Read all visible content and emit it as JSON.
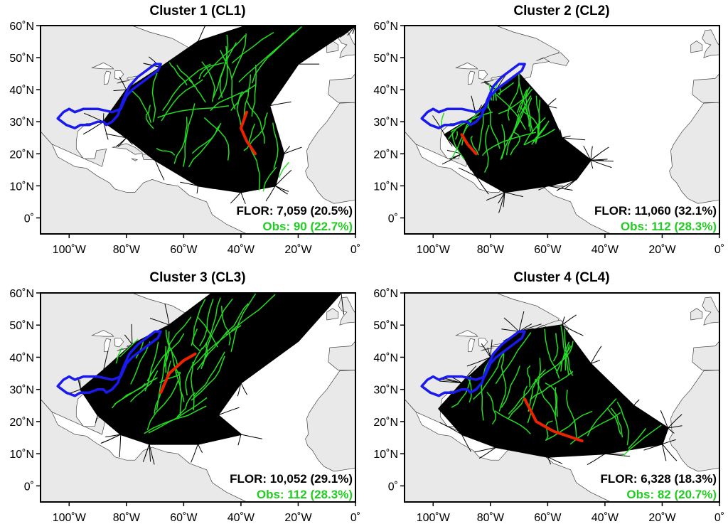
{
  "figure": {
    "lon_range": [
      -110,
      0
    ],
    "lat_range": [
      -5,
      60
    ],
    "x_ticks": [
      {
        "value": -100,
        "label": "100˚W"
      },
      {
        "value": -80,
        "label": "80˚W"
      },
      {
        "value": -60,
        "label": "60˚W"
      },
      {
        "value": -40,
        "label": "40˚W"
      },
      {
        "value": -20,
        "label": "20˚W"
      },
      {
        "value": 0,
        "label": "0˚"
      }
    ],
    "y_ticks": [
      {
        "value": 60,
        "label": "60˚N"
      },
      {
        "value": 50,
        "label": "50˚N"
      },
      {
        "value": 40,
        "label": "40˚N"
      },
      {
        "value": 30,
        "label": "30˚N"
      },
      {
        "value": 20,
        "label": "20˚N"
      },
      {
        "value": 10,
        "label": "10˚N"
      },
      {
        "value": 0,
        "label": "0˚"
      }
    ],
    "colors": {
      "land": "#e9e9e9",
      "ocean": "#ffffff",
      "coast": "#444444",
      "model_tracks": "#000000",
      "observed_tracks": "#22dd22",
      "mean_track": "#ee2200",
      "region_outline": "#1a1aee",
      "obs_text": "#22cc22"
    },
    "region_outline_lonlat": [
      [
        -104,
        31
      ],
      [
        -102,
        33
      ],
      [
        -100,
        34
      ],
      [
        -98,
        33
      ],
      [
        -95,
        34
      ],
      [
        -90,
        34
      ],
      [
        -85,
        33
      ],
      [
        -82,
        34
      ],
      [
        -80,
        38
      ],
      [
        -78,
        40
      ],
      [
        -75,
        42
      ],
      [
        -72,
        44
      ],
      [
        -69,
        46
      ],
      [
        -68,
        48
      ],
      [
        -70,
        48
      ],
      [
        -73,
        46
      ],
      [
        -76,
        44
      ],
      [
        -79,
        41
      ],
      [
        -81,
        37
      ],
      [
        -83,
        32
      ],
      [
        -85,
        30
      ],
      [
        -87,
        29
      ],
      [
        -88,
        30
      ],
      [
        -90,
        30
      ],
      [
        -93,
        29
      ],
      [
        -96,
        29
      ],
      [
        -98,
        28
      ],
      [
        -101,
        29
      ],
      [
        -104,
        31
      ]
    ]
  },
  "panels": [
    {
      "title": "Cluster 1 (CL1)",
      "flor_label": "FLOR: 7,059 (20.5%)",
      "obs_label": "Obs: 90 (22.7%)",
      "model_envelope": [
        [
          -88,
          30
        ],
        [
          -80,
          25
        ],
        [
          -70,
          18
        ],
        [
          -55,
          10
        ],
        [
          -40,
          8
        ],
        [
          -28,
          10
        ],
        [
          -25,
          20
        ],
        [
          -30,
          35
        ],
        [
          -20,
          48
        ],
        [
          0,
          60
        ],
        [
          -38,
          60
        ],
        [
          -55,
          55
        ],
        [
          -68,
          47
        ],
        [
          -80,
          40
        ]
      ],
      "mean_track": [
        [
          -35,
          20
        ],
        [
          -38,
          24
        ],
        [
          -40,
          28
        ],
        [
          -38,
          33
        ]
      ],
      "obs_samples": [
        [
          -70,
          30
        ],
        [
          -50,
          35
        ],
        [
          -40,
          30
        ],
        [
          -35,
          20
        ],
        [
          -60,
          18
        ],
        [
          -45,
          15
        ],
        [
          -30,
          12
        ],
        [
          -55,
          40
        ],
        [
          -40,
          45
        ]
      ]
    },
    {
      "title": "Cluster 2 (CL2)",
      "flor_label": "FLOR: 11,060 (32.1%)",
      "obs_label": "Obs: 112 (28.3%)",
      "model_envelope": [
        [
          -96,
          26
        ],
        [
          -90,
          20
        ],
        [
          -85,
          13
        ],
        [
          -75,
          8
        ],
        [
          -60,
          10
        ],
        [
          -50,
          12
        ],
        [
          -45,
          18
        ],
        [
          -55,
          25
        ],
        [
          -60,
          35
        ],
        [
          -70,
          45
        ],
        [
          -78,
          40
        ],
        [
          -85,
          32
        ]
      ],
      "mean_track": [
        [
          -85,
          20
        ],
        [
          -88,
          23
        ],
        [
          -90,
          26
        ]
      ],
      "obs_samples": [
        [
          -95,
          28
        ],
        [
          -90,
          20
        ],
        [
          -82,
          18
        ],
        [
          -75,
          22
        ],
        [
          -70,
          30
        ],
        [
          -80,
          35
        ],
        [
          -65,
          25
        ]
      ]
    },
    {
      "title": "Cluster 3 (CL3)",
      "flor_label": "FLOR: 10,052 (29.1%)",
      "obs_label": "Obs: 112 (28.3%)",
      "model_envelope": [
        [
          -96,
          30
        ],
        [
          -90,
          22
        ],
        [
          -82,
          16
        ],
        [
          -72,
          13
        ],
        [
          -55,
          13
        ],
        [
          -40,
          16
        ],
        [
          -48,
          22
        ],
        [
          -40,
          32
        ],
        [
          -20,
          45
        ],
        [
          -5,
          60
        ],
        [
          -50,
          60
        ],
        [
          -65,
          50
        ],
        [
          -78,
          44
        ],
        [
          -88,
          36
        ]
      ],
      "mean_track": [
        [
          -68,
          29
        ],
        [
          -65,
          35
        ],
        [
          -60,
          39
        ],
        [
          -56,
          41
        ]
      ],
      "obs_samples": [
        [
          -85,
          25
        ],
        [
          -75,
          30
        ],
        [
          -65,
          35
        ],
        [
          -55,
          40
        ],
        [
          -45,
          45
        ],
        [
          -70,
          20
        ],
        [
          -60,
          25
        ],
        [
          -80,
          40
        ]
      ]
    },
    {
      "title": "Cluster 4 (CL4)",
      "flor_label": "FLOR: 6,328 (18.3%)",
      "obs_label": "Obs: 82 (20.7%)",
      "model_envelope": [
        [
          -98,
          24
        ],
        [
          -90,
          16
        ],
        [
          -78,
          12
        ],
        [
          -60,
          9
        ],
        [
          -40,
          10
        ],
        [
          -20,
          13
        ],
        [
          -18,
          18
        ],
        [
          -30,
          25
        ],
        [
          -45,
          38
        ],
        [
          -55,
          50
        ],
        [
          -70,
          48
        ],
        [
          -80,
          40
        ],
        [
          -90,
          32
        ]
      ],
      "mean_track": [
        [
          -68,
          27
        ],
        [
          -64,
          20
        ],
        [
          -58,
          17
        ],
        [
          -48,
          14
        ]
      ],
      "obs_samples": [
        [
          -90,
          25
        ],
        [
          -80,
          22
        ],
        [
          -70,
          20
        ],
        [
          -60,
          18
        ],
        [
          -50,
          15
        ],
        [
          -35,
          13
        ],
        [
          -65,
          30
        ],
        [
          -55,
          35
        ],
        [
          -75,
          35
        ]
      ]
    }
  ]
}
